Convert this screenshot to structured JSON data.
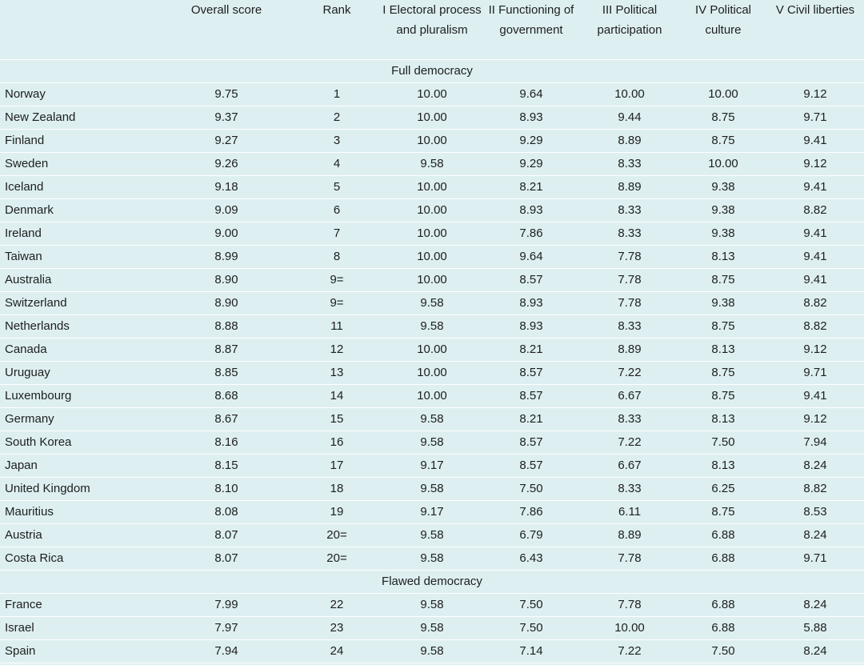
{
  "headers": [
    "",
    "Overall score",
    "Rank",
    "I Electoral process and pluralism",
    "II Functioning of government",
    "III Political participation",
    "IV Political culture",
    "V Civil liberties"
  ],
  "sections": [
    {
      "title": "Full democracy",
      "rows": [
        [
          "Norway",
          "9.75",
          "1",
          "10.00",
          "9.64",
          "10.00",
          "10.00",
          "9.12"
        ],
        [
          "New Zealand",
          "9.37",
          "2",
          "10.00",
          "8.93",
          "9.44",
          "8.75",
          "9.71"
        ],
        [
          "Finland",
          "9.27",
          "3",
          "10.00",
          "9.29",
          "8.89",
          "8.75",
          "9.41"
        ],
        [
          "Sweden",
          "9.26",
          "4",
          "9.58",
          "9.29",
          "8.33",
          "10.00",
          "9.12"
        ],
        [
          "Iceland",
          "9.18",
          "5",
          "10.00",
          "8.21",
          "8.89",
          "9.38",
          "9.41"
        ],
        [
          "Denmark",
          "9.09",
          "6",
          "10.00",
          "8.93",
          "8.33",
          "9.38",
          "8.82"
        ],
        [
          "Ireland",
          "9.00",
          "7",
          "10.00",
          "7.86",
          "8.33",
          "9.38",
          "9.41"
        ],
        [
          "Taiwan",
          "8.99",
          "8",
          "10.00",
          "9.64",
          "7.78",
          "8.13",
          "9.41"
        ],
        [
          "Australia",
          "8.90",
          "9=",
          "10.00",
          "8.57",
          "7.78",
          "8.75",
          "9.41"
        ],
        [
          "Switzerland",
          "8.90",
          "9=",
          "9.58",
          "8.93",
          "7.78",
          "9.38",
          "8.82"
        ],
        [
          "Netherlands",
          "8.88",
          "11",
          "9.58",
          "8.93",
          "8.33",
          "8.75",
          "8.82"
        ],
        [
          "Canada",
          "8.87",
          "12",
          "10.00",
          "8.21",
          "8.89",
          "8.13",
          "9.12"
        ],
        [
          "Uruguay",
          "8.85",
          "13",
          "10.00",
          "8.57",
          "7.22",
          "8.75",
          "9.71"
        ],
        [
          "Luxembourg",
          "8.68",
          "14",
          "10.00",
          "8.57",
          "6.67",
          "8.75",
          "9.41"
        ],
        [
          "Germany",
          "8.67",
          "15",
          "9.58",
          "8.21",
          "8.33",
          "8.13",
          "9.12"
        ],
        [
          "South Korea",
          "8.16",
          "16",
          "9.58",
          "8.57",
          "7.22",
          "7.50",
          "7.94"
        ],
        [
          "Japan",
          "8.15",
          "17",
          "9.17",
          "8.57",
          "6.67",
          "8.13",
          "8.24"
        ],
        [
          "United Kingdom",
          "8.10",
          "18",
          "9.58",
          "7.50",
          "8.33",
          "6.25",
          "8.82"
        ],
        [
          "Mauritius",
          "8.08",
          "19",
          "9.17",
          "7.86",
          "6.11",
          "8.75",
          "8.53"
        ],
        [
          "Austria",
          "8.07",
          "20=",
          "9.58",
          "6.79",
          "8.89",
          "6.88",
          "8.24"
        ],
        [
          "Costa Rica",
          "8.07",
          "20=",
          "9.58",
          "6.43",
          "7.78",
          "6.88",
          "9.71"
        ]
      ]
    },
    {
      "title": "Flawed democracy",
      "rows": [
        [
          "France",
          "7.99",
          "22",
          "9.58",
          "7.50",
          "7.78",
          "6.88",
          "8.24"
        ],
        [
          "Israel",
          "7.97",
          "23",
          "9.58",
          "7.50",
          "10.00",
          "6.88",
          "5.88"
        ],
        [
          "Spain",
          "7.94",
          "24",
          "9.58",
          "7.14",
          "7.22",
          "7.50",
          "8.24"
        ]
      ]
    }
  ]
}
